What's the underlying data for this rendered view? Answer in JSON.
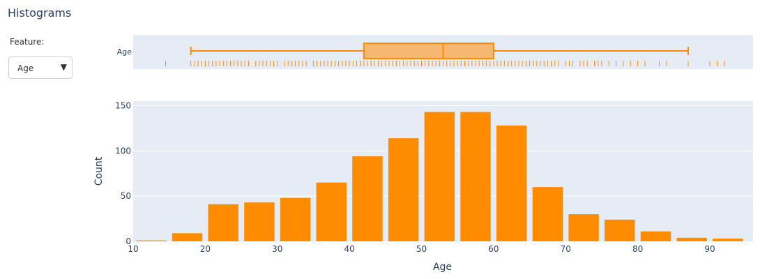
{
  "page": {
    "title": "Histograms",
    "feature_label": "Feature:",
    "feature_select": {
      "value": "Age",
      "options": [
        "Age"
      ]
    }
  },
  "colors": {
    "bar": "#ff8c00",
    "box_fill": "#f6b870",
    "plot_bg": "#e5ecf6",
    "grid": "#ffffff",
    "text": "#2a3f5f"
  },
  "chart_data": [
    {
      "type": "box",
      "category_label": "Age",
      "min": 18,
      "q1": 42,
      "median": 53,
      "q3": 60,
      "max": 87,
      "rug_points": [
        14.5,
        18,
        18.5,
        19,
        19.5,
        20,
        20.5,
        21,
        21.5,
        22,
        22.5,
        23,
        23.5,
        24,
        24.5,
        25,
        25.5,
        26,
        27,
        27.5,
        28,
        28.5,
        29,
        29.5,
        30,
        31,
        31.5,
        32,
        32.5,
        33,
        33.5,
        34,
        35,
        35.5,
        36,
        36.5,
        37,
        37.5,
        38,
        38.5,
        39,
        39.5,
        40,
        40.5,
        41,
        41.5,
        42,
        42.5,
        43,
        43.5,
        44,
        44.5,
        45,
        45.5,
        46,
        46.5,
        47,
        47.5,
        48,
        48.5,
        49,
        49.5,
        50,
        50.5,
        51,
        51.5,
        52,
        52.5,
        53,
        53.5,
        54,
        54.5,
        55,
        55.5,
        56,
        56.5,
        57,
        57.5,
        58,
        58.5,
        59,
        59.5,
        60,
        60.5,
        61,
        61.5,
        62,
        62.5,
        63,
        63.5,
        64,
        64.5,
        65,
        65.5,
        66,
        66.5,
        67,
        67.5,
        68,
        68.5,
        69,
        70,
        70.5,
        71,
        72,
        72.5,
        73,
        74,
        74.5,
        75,
        76,
        77,
        78,
        79,
        80,
        81,
        83,
        84,
        87,
        90,
        91,
        92
      ],
      "xlim": [
        10,
        96
      ]
    },
    {
      "type": "bar",
      "xlabel": "Age",
      "ylabel": "Count",
      "bin_size": 5,
      "bin_starts": [
        10,
        15,
        20,
        25,
        30,
        35,
        40,
        45,
        50,
        55,
        60,
        65,
        70,
        75,
        80,
        85,
        90
      ],
      "values": [
        1,
        9,
        41,
        43,
        48,
        65,
        94,
        114,
        143,
        143,
        128,
        60,
        30,
        24,
        11,
        4,
        3
      ],
      "xlim": [
        10,
        96
      ],
      "ylim": [
        0,
        155
      ],
      "x_ticks": [
        10,
        20,
        30,
        40,
        50,
        60,
        70,
        80,
        90
      ],
      "y_ticks": [
        0,
        50,
        100,
        150
      ],
      "grid": true
    }
  ]
}
